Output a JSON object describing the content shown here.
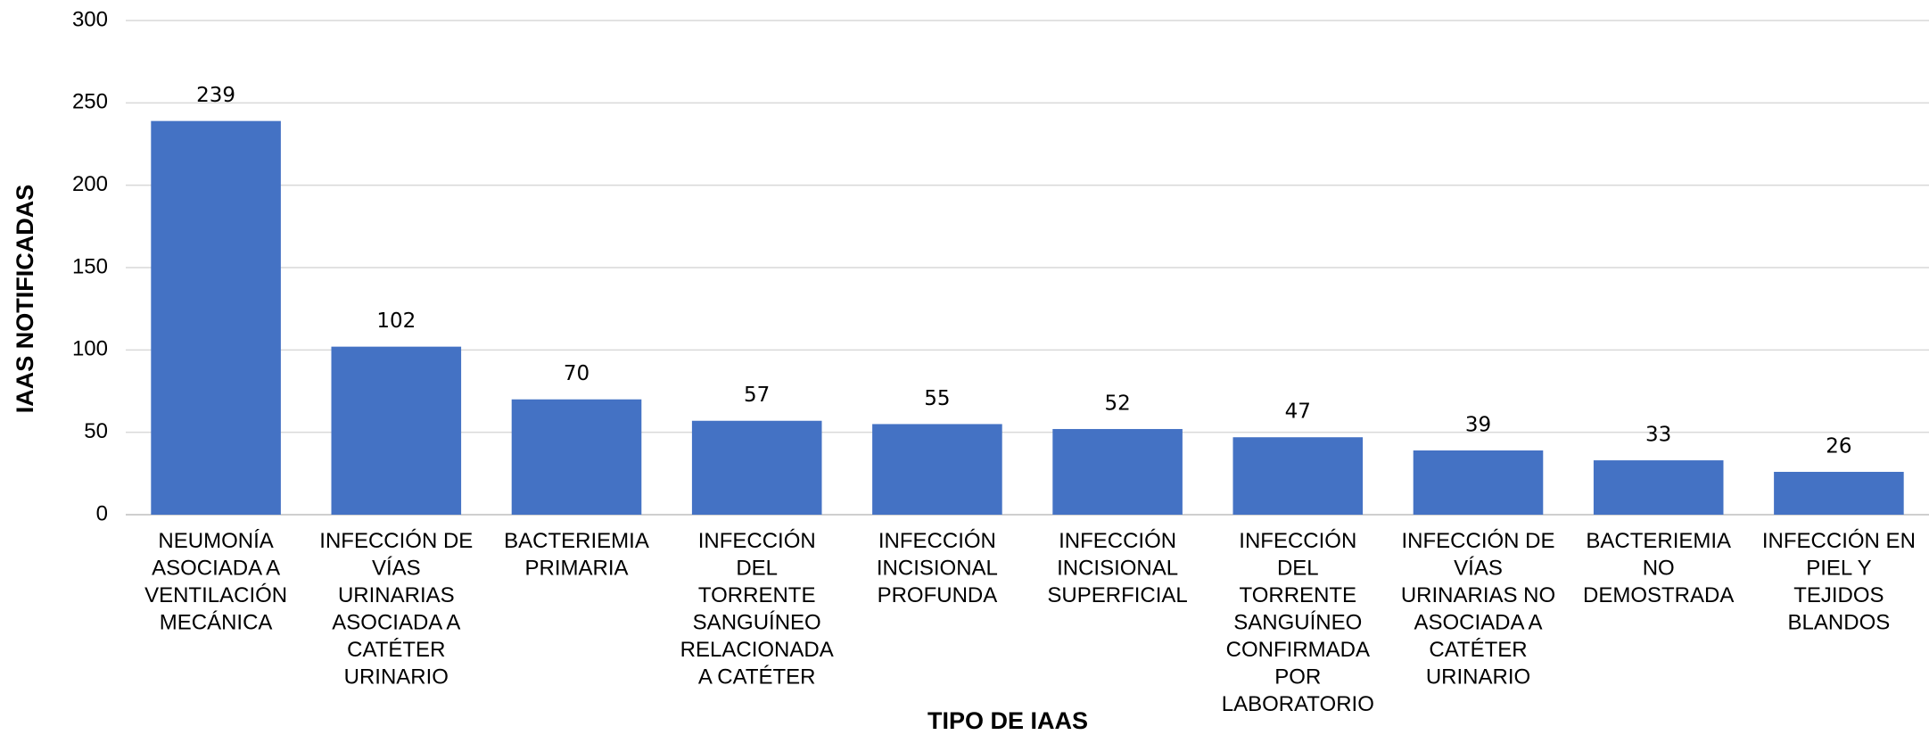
{
  "chart_data": {
    "type": "bar",
    "x_label": "TIPO DE IAAS",
    "y_label": "IAAS NOTIFICADAS",
    "categories": [
      "NEUMONÍA\nASOCIADA A\nVENTILACIÓN\nMECÁNICA",
      "INFECCIÓN DE\nVÍAS\nURINARIAS\nASOCIADA A\nCATÉTER\nURINARIO",
      "BACTERIEMIA\nPRIMARIA",
      "INFECCIÓN\nDEL\nTORRENTE\nSANGUÍNEO\nRELACIONADA\nA CATÉTER",
      "INFECCIÓN\nINCISIONAL\nPROFUNDA",
      "INFECCIÓN\nINCISIONAL\nSUPERFICIAL",
      "INFECCIÓN\nDEL\nTORRENTE\nSANGUÍNEO\nCONFIRMADA\nPOR\nLABORATORIO",
      "INFECCIÓN DE\nVÍAS\nURINARIAS NO\nASOCIADA A\nCATÉTER\nURINARIO",
      "BACTERIEMIA\nNO\nDEMOSTRADA",
      "INFECCIÓN EN\nPIEL Y\nTEJIDOS\nBLANDOS"
    ],
    "values": [
      239,
      102,
      70,
      57,
      55,
      52,
      47,
      39,
      33,
      26
    ],
    "color": "#4472c4",
    "ylim": [
      0,
      300
    ],
    "yticks": [
      0,
      50,
      100,
      150,
      200,
      250,
      300
    ],
    "grid": true
  }
}
